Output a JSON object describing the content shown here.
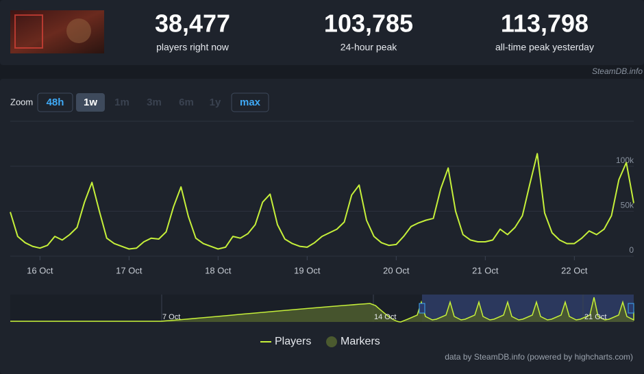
{
  "header": {
    "stats": [
      {
        "value": "38,477",
        "label": "players right now"
      },
      {
        "value": "103,785",
        "label": "24-hour peak"
      },
      {
        "value": "113,798",
        "label": "all-time peak yesterday"
      }
    ],
    "source": "SteamDB.info"
  },
  "zoom": {
    "label": "Zoom",
    "buttons": [
      {
        "label": "48h",
        "state": "enabled"
      },
      {
        "label": "1w",
        "state": "selected"
      },
      {
        "label": "1m",
        "state": "disabled"
      },
      {
        "label": "3m",
        "state": "disabled"
      },
      {
        "label": "6m",
        "state": "disabled"
      },
      {
        "label": "1y",
        "state": "disabled"
      },
      {
        "label": "max",
        "state": "enabled"
      }
    ]
  },
  "chart_data": {
    "type": "line",
    "categories": [
      null,
      null,
      null,
      null,
      "16 Oct",
      null,
      null,
      null,
      null,
      null,
      null,
      null,
      null,
      null,
      null,
      null,
      "17 Oct",
      null,
      null,
      null,
      null,
      null,
      null,
      null,
      null,
      null,
      null,
      null,
      "18 Oct",
      null,
      null,
      null,
      null,
      null,
      null,
      null,
      null,
      null,
      null,
      null,
      "19 Oct",
      null,
      null,
      null,
      null,
      null,
      null,
      null,
      null,
      null,
      null,
      null,
      "20 Oct",
      null,
      null,
      null,
      null,
      null,
      null,
      null,
      null,
      null,
      null,
      null,
      "21 Oct",
      null,
      null,
      null,
      null,
      null,
      null,
      null,
      null,
      null,
      null,
      null,
      "22 Oct",
      null,
      null,
      null,
      null,
      null,
      null,
      null,
      null
    ],
    "series": [
      {
        "name": "Players",
        "color": "#c6f03a",
        "values": [
          49000,
          22000,
          15000,
          11000,
          9000,
          12000,
          22000,
          18000,
          24000,
          32000,
          60000,
          82000,
          50000,
          20000,
          14000,
          11000,
          8000,
          9000,
          16000,
          20000,
          19000,
          27000,
          55000,
          77000,
          44000,
          20000,
          14000,
          11000,
          8000,
          10000,
          22000,
          20000,
          25000,
          35000,
          60000,
          69000,
          35000,
          19000,
          14000,
          11000,
          10000,
          15000,
          22000,
          26000,
          30000,
          38000,
          68000,
          79000,
          40000,
          22000,
          15000,
          12000,
          13000,
          22000,
          33000,
          37000,
          40000,
          42000,
          75000,
          98000,
          50000,
          24000,
          18000,
          16000,
          16000,
          18000,
          30000,
          24000,
          32000,
          45000,
          80000,
          114000,
          48000,
          26000,
          18000,
          14000,
          14000,
          20000,
          28000,
          24000,
          30000,
          45000,
          85000,
          104000,
          59000
        ]
      }
    ],
    "marker_series": {
      "name": "Markers",
      "color": "#4b5a2f"
    },
    "ylim": [
      0,
      150000
    ],
    "yticks": [
      0,
      {
        "value": 50000,
        "label": "50k"
      },
      {
        "value": 100000,
        "label": "100k"
      }
    ],
    "grid": true
  },
  "navigator": {
    "labels": [
      "7 Oct",
      "14 Oct",
      "21 Oct"
    ]
  },
  "credit": "data by SteamDB.info (powered by highcharts.com)"
}
